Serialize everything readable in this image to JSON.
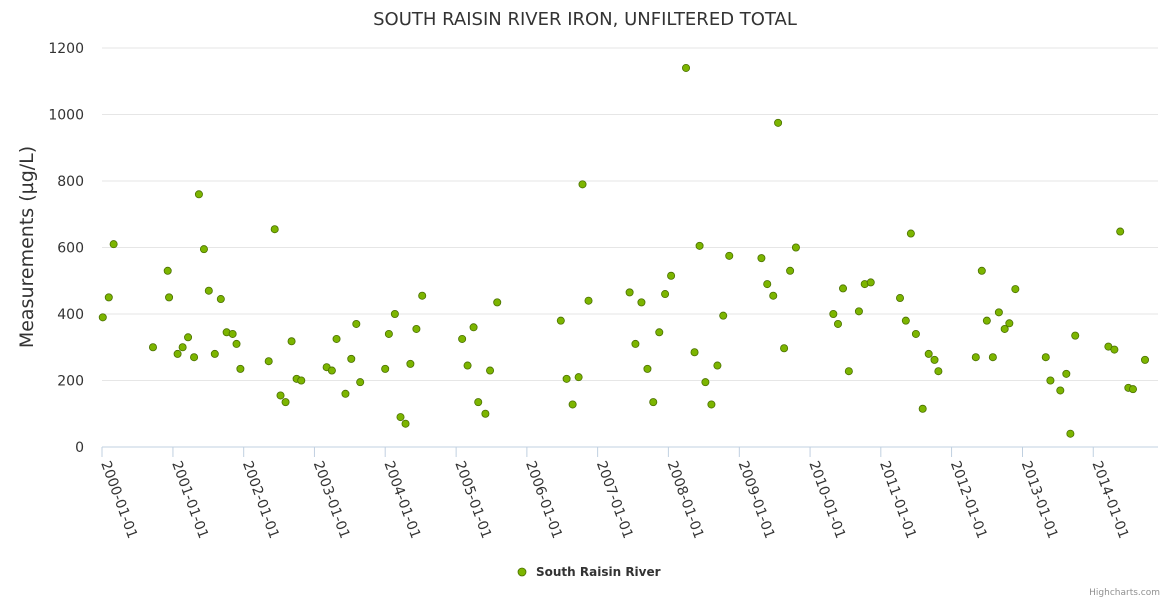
{
  "chart_data": {
    "type": "scatter",
    "title": "SOUTH RAISIN RIVER IRON, UNFILTERED TOTAL",
    "xlabel": "",
    "ylabel": "Measurements (µg/L)",
    "ylim": [
      0,
      1200
    ],
    "yticks": [
      "0",
      "200",
      "400",
      "600",
      "800",
      "1000",
      "1200"
    ],
    "xlim": [
      "2000-01-01",
      "2014-12-01"
    ],
    "xticks": [
      "2000-01-01",
      "2001-01-01",
      "2002-01-01",
      "2003-01-01",
      "2004-01-01",
      "2005-01-01",
      "2006-01-01",
      "2007-01-01",
      "2008-01-01",
      "2009-01-01",
      "2010-01-01",
      "2011-01-01",
      "2012-01-01",
      "2013-01-01",
      "2014-01-01"
    ],
    "grid": true,
    "legend_position": "bottom-center",
    "series": [
      {
        "name": "South Raisin River",
        "color": "#7cb500",
        "points": [
          [
            "2000-01-05",
            390
          ],
          [
            "2000-02-05",
            450
          ],
          [
            "2000-03-01",
            610
          ],
          [
            "2000-09-20",
            300
          ],
          [
            "2000-12-05",
            530
          ],
          [
            "2000-12-12",
            450
          ],
          [
            "2001-01-25",
            280
          ],
          [
            "2001-02-20",
            300
          ],
          [
            "2001-03-20",
            330
          ],
          [
            "2001-04-20",
            270
          ],
          [
            "2001-05-15",
            760
          ],
          [
            "2001-06-10",
            595
          ],
          [
            "2001-07-05",
            470
          ],
          [
            "2001-08-05",
            280
          ],
          [
            "2001-09-05",
            445
          ],
          [
            "2001-10-05",
            345
          ],
          [
            "2001-11-05",
            340
          ],
          [
            "2001-11-25",
            310
          ],
          [
            "2001-12-15",
            235
          ],
          [
            "2002-05-10",
            258
          ],
          [
            "2002-06-10",
            655
          ],
          [
            "2002-07-10",
            155
          ],
          [
            "2002-08-05",
            135
          ],
          [
            "2002-09-05",
            318
          ],
          [
            "2002-10-01",
            205
          ],
          [
            "2002-10-25",
            200
          ],
          [
            "2003-03-05",
            240
          ],
          [
            "2003-04-01",
            230
          ],
          [
            "2003-04-25",
            325
          ],
          [
            "2003-06-10",
            160
          ],
          [
            "2003-07-10",
            265
          ],
          [
            "2003-08-05",
            370
          ],
          [
            "2003-08-25",
            195
          ],
          [
            "2004-01-01",
            235
          ],
          [
            "2004-01-20",
            340
          ],
          [
            "2004-02-20",
            400
          ],
          [
            "2004-03-20",
            90
          ],
          [
            "2004-04-15",
            70
          ],
          [
            "2004-05-10",
            250
          ],
          [
            "2004-06-10",
            355
          ],
          [
            "2004-07-10",
            455
          ],
          [
            "2005-02-01",
            325
          ],
          [
            "2005-03-01",
            245
          ],
          [
            "2005-04-01",
            360
          ],
          [
            "2005-04-25",
            135
          ],
          [
            "2005-06-01",
            100
          ],
          [
            "2005-06-25",
            230
          ],
          [
            "2005-08-01",
            435
          ],
          [
            "2006-06-25",
            380
          ],
          [
            "2006-07-25",
            205
          ],
          [
            "2006-08-25",
            128
          ],
          [
            "2006-09-25",
            210
          ],
          [
            "2006-10-15",
            790
          ],
          [
            "2006-11-15",
            440
          ],
          [
            "2007-06-15",
            465
          ],
          [
            "2007-07-15",
            310
          ],
          [
            "2007-08-15",
            435
          ],
          [
            "2007-09-15",
            235
          ],
          [
            "2007-10-15",
            135
          ],
          [
            "2007-11-15",
            345
          ],
          [
            "2007-12-15",
            460
          ],
          [
            "2008-01-15",
            515
          ],
          [
            "2008-04-01",
            1140
          ],
          [
            "2008-05-15",
            285
          ],
          [
            "2008-06-10",
            605
          ],
          [
            "2008-07-10",
            195
          ],
          [
            "2008-08-10",
            128
          ],
          [
            "2008-09-10",
            245
          ],
          [
            "2008-10-10",
            395
          ],
          [
            "2008-11-10",
            575
          ],
          [
            "2009-04-25",
            568
          ],
          [
            "2009-05-25",
            490
          ],
          [
            "2009-06-25",
            455
          ],
          [
            "2009-07-20",
            975
          ],
          [
            "2009-08-20",
            297
          ],
          [
            "2009-09-20",
            530
          ],
          [
            "2009-10-20",
            600
          ],
          [
            "2010-05-01",
            400
          ],
          [
            "2010-05-25",
            370
          ],
          [
            "2010-06-20",
            477
          ],
          [
            "2010-07-20",
            228
          ],
          [
            "2010-09-10",
            408
          ],
          [
            "2010-10-10",
            490
          ],
          [
            "2010-11-10",
            495
          ],
          [
            "2011-04-10",
            448
          ],
          [
            "2011-05-10",
            380
          ],
          [
            "2011-06-05",
            642
          ],
          [
            "2011-07-01",
            340
          ],
          [
            "2011-08-05",
            115
          ],
          [
            "2011-09-05",
            280
          ],
          [
            "2011-10-05",
            262
          ],
          [
            "2011-10-25",
            228
          ],
          [
            "2012-05-05",
            270
          ],
          [
            "2012-06-05",
            530
          ],
          [
            "2012-07-01",
            380
          ],
          [
            "2012-08-01",
            270
          ],
          [
            "2012-09-01",
            405
          ],
          [
            "2012-10-01",
            355
          ],
          [
            "2012-10-25",
            372
          ],
          [
            "2012-11-25",
            475
          ],
          [
            "2013-05-01",
            270
          ],
          [
            "2013-05-25",
            200
          ],
          [
            "2013-07-15",
            170
          ],
          [
            "2013-08-15",
            220
          ],
          [
            "2013-09-05",
            40
          ],
          [
            "2013-09-30",
            335
          ],
          [
            "2014-03-20",
            302
          ],
          [
            "2014-04-20",
            293
          ],
          [
            "2014-05-20",
            648
          ],
          [
            "2014-07-01",
            178
          ],
          [
            "2014-07-25",
            174
          ],
          [
            "2014-09-25",
            262
          ]
        ]
      }
    ]
  },
  "credits": "Highcharts.com"
}
